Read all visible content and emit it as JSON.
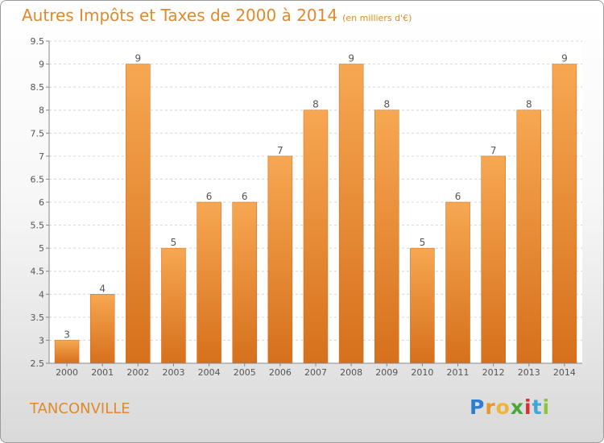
{
  "title": "Autres Impôts et Taxes de 2000 à 2014",
  "unit": "(en milliers d'€)",
  "commune": "TANCONVILLE",
  "logo": {
    "letters": [
      "P",
      "r",
      "o",
      "x",
      "i",
      "t",
      "i"
    ],
    "colors": [
      "#2f7fd0",
      "#e8962a",
      "#f0b43a",
      "#48a838",
      "#d83030",
      "#3ca8d8",
      "#8bc63e"
    ]
  },
  "chart_data": {
    "type": "bar",
    "categories": [
      "2000",
      "2001",
      "2002",
      "2003",
      "2004",
      "2005",
      "2006",
      "2007",
      "2008",
      "2009",
      "2010",
      "2011",
      "2012",
      "2013",
      "2014"
    ],
    "values": [
      3,
      4,
      9,
      5,
      6,
      6,
      7,
      8,
      9,
      8,
      5,
      6,
      7,
      8,
      9
    ],
    "ylim": [
      2.5,
      9.5
    ],
    "yticks": [
      "2.5",
      "3",
      "3.5",
      "4",
      "4.5",
      "5",
      "5.5",
      "6",
      "6.5",
      "7",
      "7.5",
      "8",
      "8.5",
      "9",
      "9.5"
    ],
    "grid": true,
    "bar_color": "#e88a2a"
  }
}
